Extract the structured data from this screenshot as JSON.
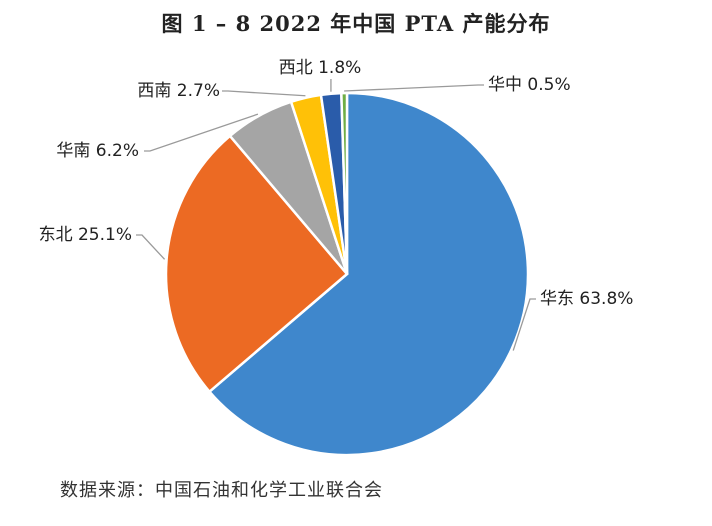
{
  "chart_data": {
    "type": "pie",
    "title": "图 1 – 8 2022 年中国 PTA 产能分布",
    "source": "数据来源：中国石油和化学工业联合会",
    "categories": [
      "华东",
      "东北",
      "华南",
      "西南",
      "西北",
      "华中"
    ],
    "values": [
      63.8,
      25.1,
      6.2,
      2.7,
      1.8,
      0.5
    ],
    "unit": "%",
    "colors": [
      "#3f87cc",
      "#ec6a23",
      "#a5a5a5",
      "#ffc107",
      "#2a5caa",
      "#6fae45"
    ],
    "labels": [
      "华东 63.8%",
      "东北 25.1%",
      "华南 6.2%",
      "西南 2.7%",
      "西北 1.8%",
      "华中 0.5%"
    ]
  }
}
